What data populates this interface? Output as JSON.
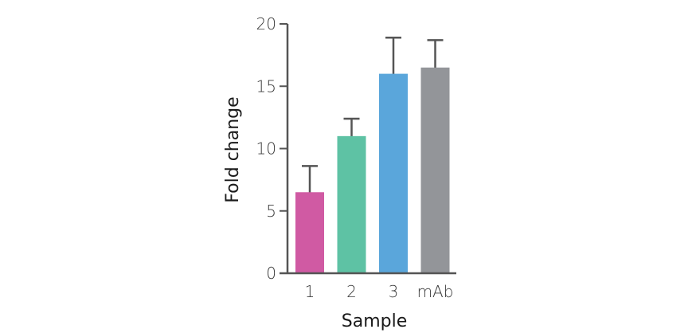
{
  "chart_data": {
    "type": "bar",
    "title": "",
    "xlabel": "Sample",
    "ylabel": "Fold change",
    "categories": [
      "1",
      "2",
      "3",
      "mAb"
    ],
    "values": [
      6.5,
      11.0,
      16.0,
      16.5
    ],
    "error_upper": [
      8.6,
      12.4,
      18.9,
      18.7
    ],
    "colors": [
      "#d05aa3",
      "#5ec2a4",
      "#5aa6db",
      "#939599"
    ],
    "ylim": [
      0,
      20
    ],
    "yticks": [
      0,
      5,
      10,
      15,
      20
    ],
    "grid": false,
    "legend": null
  },
  "axis_color": "#555555"
}
